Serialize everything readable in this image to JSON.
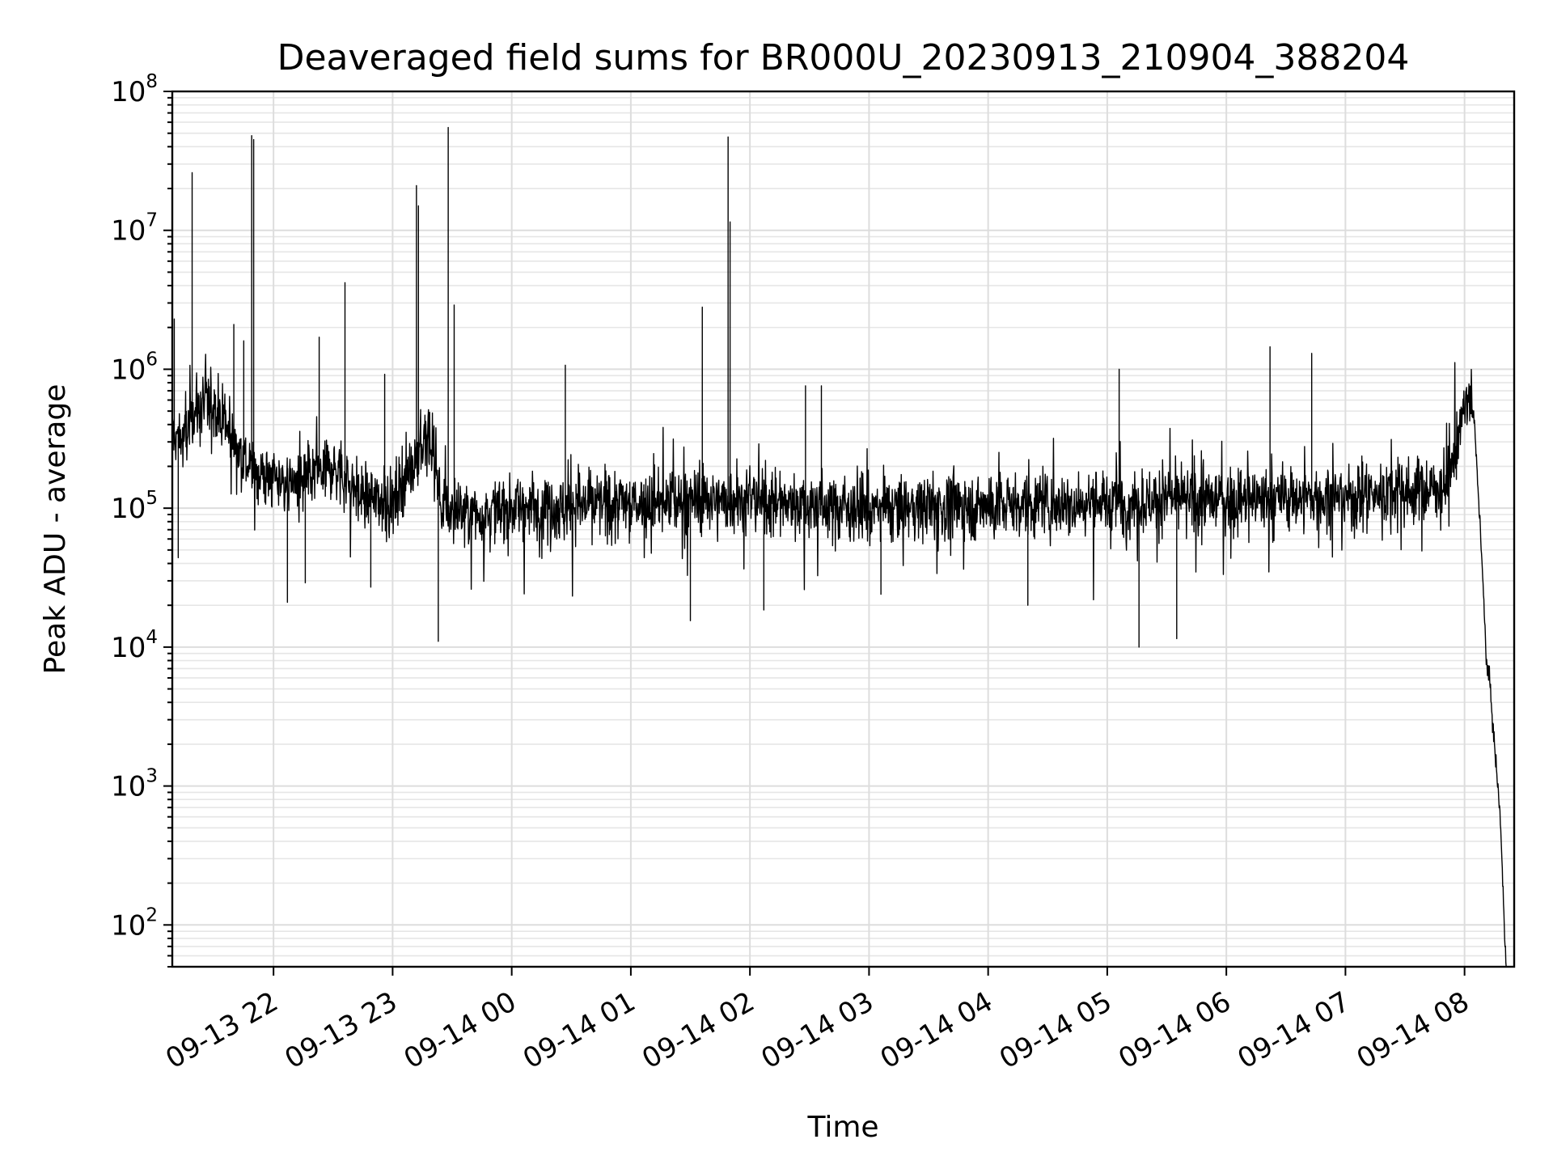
{
  "chart_data": {
    "type": "line",
    "title": "Deaveraged field sums for BR000U_20230913_210904_388204",
    "xlabel": "Time",
    "ylabel": "Peak ADU - average",
    "yscale": "log",
    "ylim": [
      50,
      100000000
    ],
    "xlim": [
      "2023-09-13 21:09",
      "2023-09-14 08:25"
    ],
    "grid": "on (major and minor)",
    "x_ticks": [
      {
        "time": "2023-09-13 22:00",
        "label": "09-13 22"
      },
      {
        "time": "2023-09-13 23:00",
        "label": "09-13 23"
      },
      {
        "time": "2023-09-14 00:00",
        "label": "09-14 00"
      },
      {
        "time": "2023-09-14 01:00",
        "label": "09-14 01"
      },
      {
        "time": "2023-09-14 02:00",
        "label": "09-14 02"
      },
      {
        "time": "2023-09-14 03:00",
        "label": "09-14 03"
      },
      {
        "time": "2023-09-14 04:00",
        "label": "09-14 04"
      },
      {
        "time": "2023-09-14 05:00",
        "label": "09-14 05"
      },
      {
        "time": "2023-09-14 06:00",
        "label": "09-14 06"
      },
      {
        "time": "2023-09-14 07:00",
        "label": "09-14 07"
      },
      {
        "time": "2023-09-14 08:00",
        "label": "09-14 08"
      }
    ],
    "y_ticks": [
      {
        "value": 100,
        "base": "10",
        "exp": "2"
      },
      {
        "value": 1000,
        "base": "10",
        "exp": "3"
      },
      {
        "value": 10000,
        "base": "10",
        "exp": "4"
      },
      {
        "value": 100000,
        "base": "10",
        "exp": "5"
      },
      {
        "value": 1000000,
        "base": "10",
        "exp": "6"
      },
      {
        "value": 10000000,
        "base": "10",
        "exp": "7"
      },
      {
        "value": 100000000,
        "base": "10",
        "exp": "8"
      }
    ],
    "series": [
      {
        "color": "#000000",
        "baseline": [
          [
            "2023-09-13 21:09",
            350000
          ],
          [
            "2023-09-13 21:15",
            300000
          ],
          [
            "2023-09-13 21:20",
            500000
          ],
          [
            "2023-09-13 21:30",
            600000
          ],
          [
            "2023-09-13 21:40",
            300000
          ],
          [
            "2023-09-13 21:50",
            180000
          ],
          [
            "2023-09-13 22:10",
            150000
          ],
          [
            "2023-09-13 22:30",
            200000
          ],
          [
            "2023-09-13 22:45",
            120000
          ],
          [
            "2023-09-13 23:00",
            110000
          ],
          [
            "2023-09-13 23:10",
            220000
          ],
          [
            "2023-09-13 23:15",
            300000
          ],
          [
            "2023-09-13 23:20",
            250000
          ],
          [
            "2023-09-13 23:25",
            100000
          ],
          [
            "2023-09-13 23:40",
            90000
          ],
          [
            "2023-09-14 00:00",
            100000
          ],
          [
            "2023-09-14 01:00",
            110000
          ],
          [
            "2023-09-14 02:00",
            115000
          ],
          [
            "2023-09-14 03:00",
            100000
          ],
          [
            "2023-09-14 04:00",
            105000
          ],
          [
            "2023-09-14 05:00",
            110000
          ],
          [
            "2023-09-14 06:00",
            115000
          ],
          [
            "2023-09-14 07:00",
            120000
          ],
          [
            "2023-09-14 07:50",
            140000
          ],
          [
            "2023-09-14 07:55",
            250000
          ],
          [
            "2023-09-14 08:00",
            550000
          ],
          [
            "2023-09-14 08:03",
            600000
          ],
          [
            "2023-09-14 08:05",
            400000
          ],
          [
            "2023-09-14 08:08",
            70000
          ],
          [
            "2023-09-14 08:11",
            8000
          ],
          [
            "2023-09-14 08:13",
            5000
          ],
          [
            "2023-09-14 08:15",
            2000
          ],
          [
            "2023-09-14 08:18",
            600
          ],
          [
            "2023-09-14 08:20",
            100
          ],
          [
            "2023-09-14 08:21",
            50
          ]
        ],
        "spikes_high": [
          [
            "2023-09-13 21:10",
            2300000
          ],
          [
            "2023-09-13 21:19",
            26000000
          ],
          [
            "2023-09-13 21:40",
            2100000
          ],
          [
            "2023-09-13 21:45",
            1600000
          ],
          [
            "2023-09-13 21:49",
            48000000
          ],
          [
            "2023-09-13 21:50",
            45000000
          ],
          [
            "2023-09-13 22:23",
            1700000
          ],
          [
            "2023-09-13 22:36",
            4200000
          ],
          [
            "2023-09-13 22:56",
            920000
          ],
          [
            "2023-09-13 23:12",
            21000000
          ],
          [
            "2023-09-13 23:13",
            15000000
          ],
          [
            "2023-09-13 23:28",
            55000000
          ],
          [
            "2023-09-13 23:31",
            2900000
          ],
          [
            "2023-09-14 00:27",
            1070000
          ],
          [
            "2023-09-14 01:36",
            2800000
          ],
          [
            "2023-09-14 01:49",
            47000000
          ],
          [
            "2023-09-14 01:50",
            11500000
          ],
          [
            "2023-09-14 02:28",
            760000
          ],
          [
            "2023-09-14 02:36",
            760000
          ],
          [
            "2023-09-14 05:06",
            1000000
          ],
          [
            "2023-09-14 06:22",
            1450000
          ],
          [
            "2023-09-14 06:43",
            1300000
          ]
        ],
        "dips_low": [
          [
            "2023-09-13 21:12",
            44000
          ],
          [
            "2023-09-13 22:07",
            21000
          ],
          [
            "2023-09-13 22:16",
            29000
          ],
          [
            "2023-09-13 22:49",
            27000
          ],
          [
            "2023-09-13 23:23",
            11000
          ],
          [
            "2023-09-14 01:30",
            15500
          ],
          [
            "2023-09-14 02:07",
            18500
          ],
          [
            "2023-09-14 03:06",
            24000
          ],
          [
            "2023-09-14 04:20",
            20000
          ],
          [
            "2023-09-14 05:16",
            10000
          ],
          [
            "2023-09-14 05:35",
            11500
          ]
        ]
      }
    ]
  }
}
